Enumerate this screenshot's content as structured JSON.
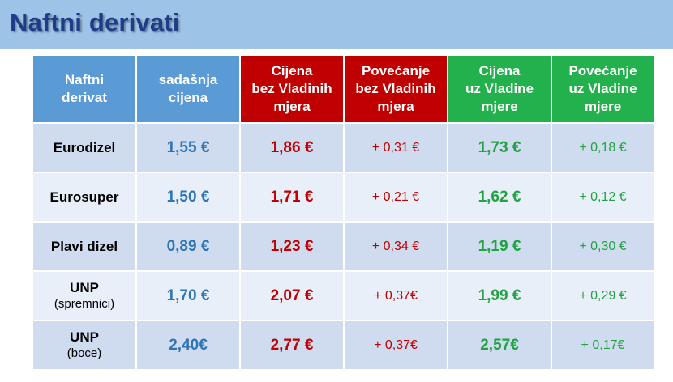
{
  "page": {
    "title": "Naftni derivati"
  },
  "colors": {
    "title_bar": "#9dc3e6",
    "title_text": "#1f3c8a",
    "header_blue": "#5b9bd5",
    "header_red": "#c00000",
    "header_green": "#22b14c",
    "row_dark": "#cfdcef",
    "row_light": "#e9eff8",
    "current_price_text": "#2e75b6",
    "red_text": "#c00000",
    "green_text": "#22a243"
  },
  "table": {
    "headers": [
      "Naftni\nderivat",
      "sadašnja\ncijena",
      "Cijena\nbez Vladinih\nmjera",
      "Povećanje\nbez Vladinih\nmjera",
      "Cijena\nuz Vladine\nmjere",
      "Povećanje\nuz Vladine\nmjere"
    ],
    "rows": [
      {
        "name": "Eurodizel",
        "sub": "",
        "current": "1,55 €",
        "price_without": "1,86 €",
        "increase_without": "+ 0,31 €",
        "price_with": "1,73 €",
        "increase_with": "+ 0,18 €"
      },
      {
        "name": "Eurosuper",
        "sub": "",
        "current": "1,50 €",
        "price_without": "1,71 €",
        "increase_without": "+ 0,21 €",
        "price_with": "1,62 €",
        "increase_with": "+ 0,12 €"
      },
      {
        "name": "Plavi dizel",
        "sub": "",
        "current": "0,89 €",
        "price_without": "1,23 €",
        "increase_without": "+ 0,34 €",
        "price_with": "1,19 €",
        "increase_with": "+ 0,30 €"
      },
      {
        "name": "UNP",
        "sub": "(spremnici)",
        "current": "1,70 €",
        "price_without": "2,07 €",
        "increase_without": "+ 0,37€",
        "price_with": "1,99 €",
        "increase_with": "+ 0,29 €"
      },
      {
        "name": "UNP",
        "sub": "(boce)",
        "current": "2,40€",
        "price_without": "2,77 €",
        "increase_without": "+ 0,37€",
        "price_with": "2,57€",
        "increase_with": "+ 0,17€"
      }
    ]
  }
}
